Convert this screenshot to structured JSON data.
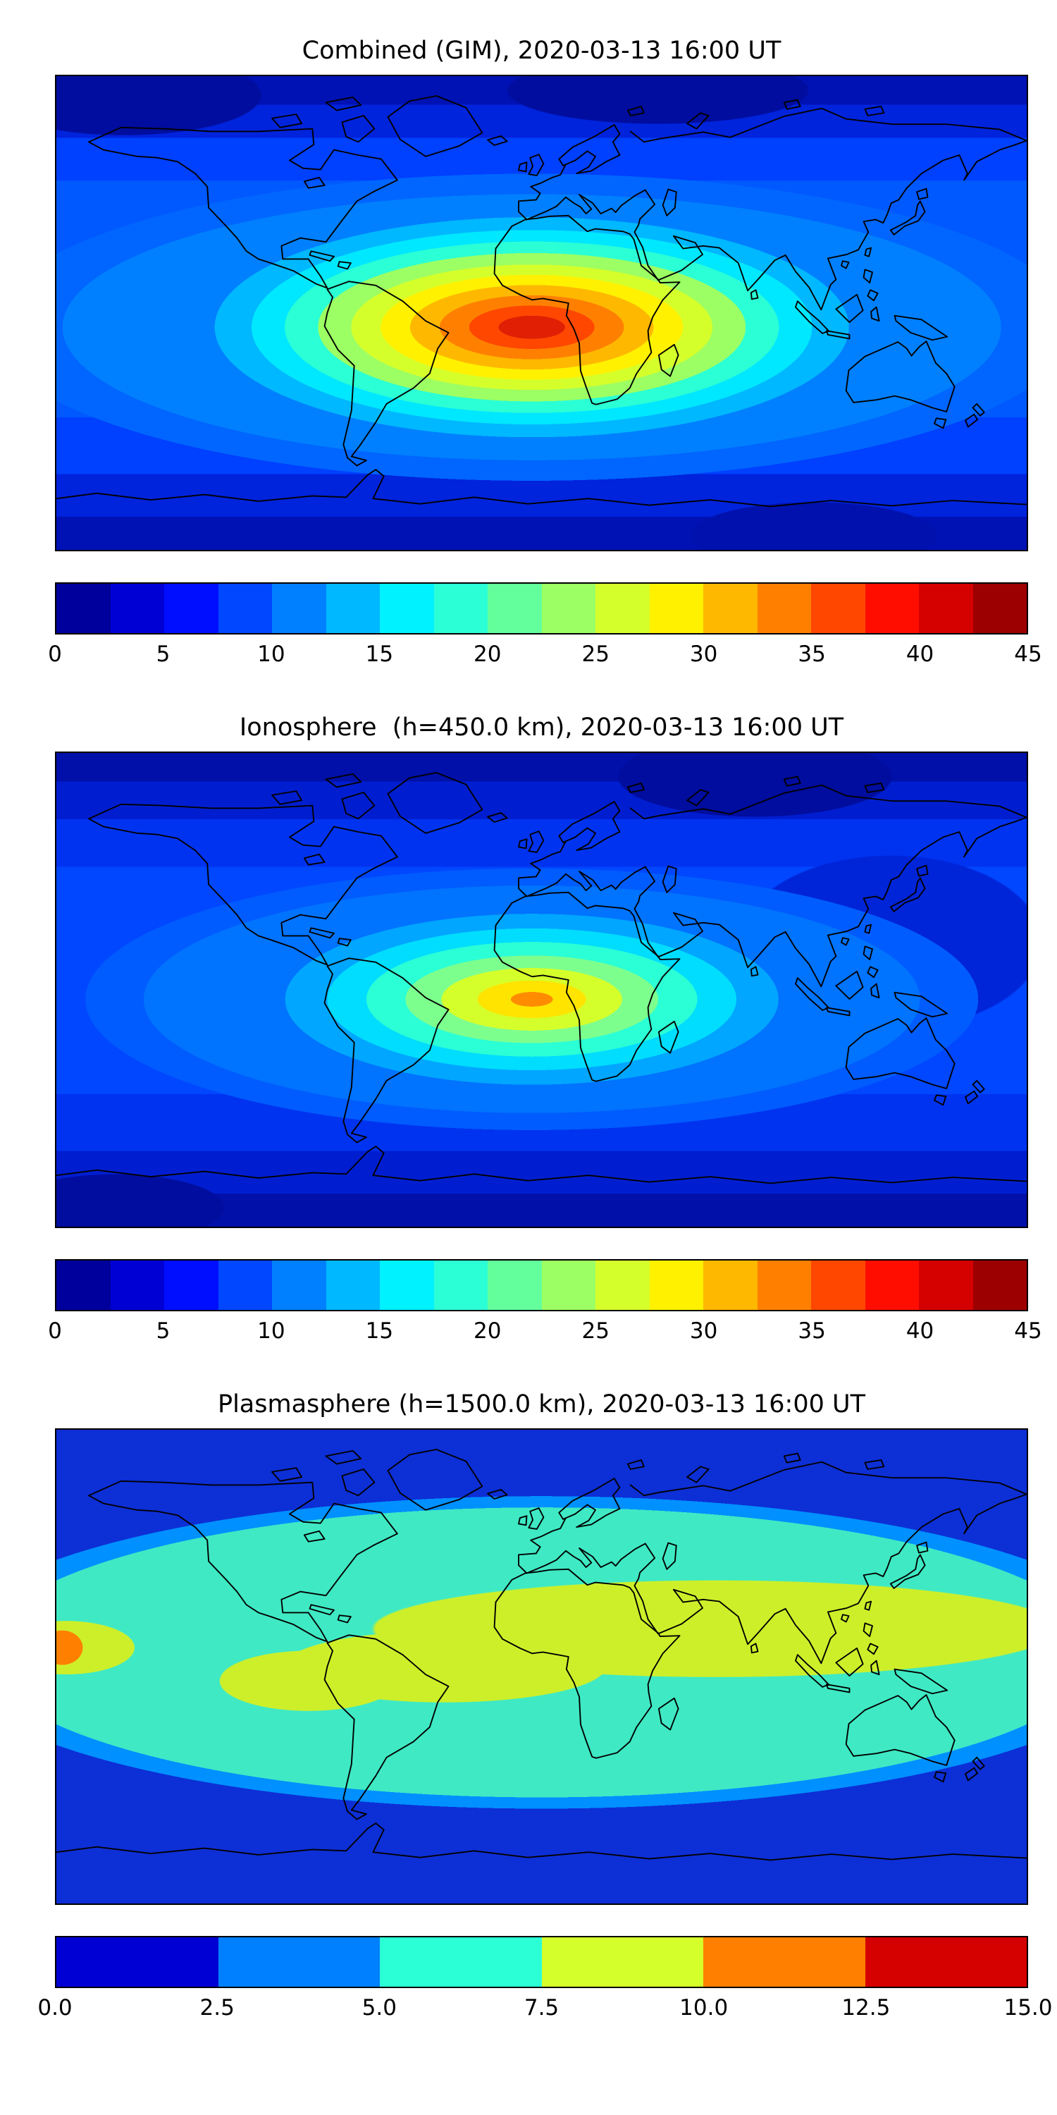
{
  "figure": {
    "timestamp_ut": "2020-03-13 16:00 UT",
    "panels": [
      {
        "title": "Combined (GIM), 2020-03-13 16:00 UT",
        "colorbar": {
          "min": 0,
          "max": 45,
          "ticks": [
            "0",
            "5",
            "10",
            "15",
            "20",
            "25",
            "30",
            "35",
            "40",
            "45"
          ],
          "segment_colors": [
            "#00009c",
            "#0000d5",
            "#000eff",
            "#0047ff",
            "#0080ff",
            "#00b8ff",
            "#00f1ff",
            "#2bffd5",
            "#63ff9c",
            "#9cff63",
            "#d5ff2b",
            "#fff100",
            "#ffb800",
            "#ff8000",
            "#ff4700",
            "#ff0e00",
            "#d50000",
            "#9c0000"
          ]
        }
      },
      {
        "title": "Ionosphere  (h=450.0 km), 2020-03-13 16:00 UT",
        "colorbar": {
          "min": 0,
          "max": 45,
          "ticks": [
            "0",
            "5",
            "10",
            "15",
            "20",
            "25",
            "30",
            "35",
            "40",
            "45"
          ],
          "segment_colors": [
            "#00009c",
            "#0000d5",
            "#000eff",
            "#0047ff",
            "#0080ff",
            "#00b8ff",
            "#00f1ff",
            "#2bffd5",
            "#63ff9c",
            "#9cff63",
            "#d5ff2b",
            "#fff100",
            "#ffb800",
            "#ff8000",
            "#ff4700",
            "#ff0e00",
            "#d50000",
            "#9c0000"
          ]
        }
      },
      {
        "title": "Plasmasphere (h=1500.0 km), 2020-03-13 16:00 UT",
        "colorbar": {
          "min": 0,
          "max": 15,
          "ticks": [
            "0.0",
            "2.5",
            "5.0",
            "7.5",
            "10.0",
            "12.5",
            "15.0"
          ],
          "segment_colors": [
            "#0000d5",
            "#0080ff",
            "#2bffd5",
            "#d5ff2b",
            "#ff8000",
            "#d50000"
          ]
        }
      }
    ]
  },
  "chart_data": [
    {
      "type": "heatmap",
      "subtype": "filled contour map, global equirectangular projection with coastlines",
      "title": "Combined (GIM), 2020-03-13 16:00 UT",
      "colormap": "jet",
      "value_range": [
        0,
        45
      ],
      "contour_step": 2.5,
      "colorbar_ticks": [
        0,
        5,
        10,
        15,
        20,
        25,
        30,
        35,
        40,
        45
      ],
      "legend_position": "horizontal colorbar below map",
      "peak": {
        "value_estimate": 42,
        "location": "equatorial region over the eastern Atlantic / western-central Africa (approx. 5-10S, 0-15E)"
      },
      "background_estimate": "5-12 over mid-latitude oceans, 0-5 near the poles and over northeast Asia",
      "pattern": "single broad dayside enhancement centered near the sub-solar point, concentric contour rings (red core, orange, yellow, green, cyan) decreasing toward the poles and the night side over the Pacific/east Asia"
    },
    {
      "type": "heatmap",
      "subtype": "filled contour map, global equirectangular projection with coastlines",
      "title": "Ionosphere  (h=450.0 km), 2020-03-13 16:00 UT",
      "colormap": "jet",
      "value_range": [
        0,
        45
      ],
      "contour_step": 2.5,
      "colorbar_ticks": [
        0,
        5,
        10,
        15,
        20,
        25,
        30,
        35,
        40,
        45
      ],
      "legend_position": "horizontal colorbar below map",
      "peak": {
        "value_estimate": 33,
        "location": "equatorial Atlantic near the West African coast (approx. 5S, 0E)"
      },
      "background_estimate": "2.5-10 over most of the globe, darkest (0-5) at high latitudes and over the eastern Pacific sector",
      "pattern": "same dayside enhancement as the combined map but weaker: small orange core inside yellow and green rings over the equatorial Atlantic/Africa"
    },
    {
      "type": "heatmap",
      "subtype": "filled contour map, global equirectangular projection with coastlines",
      "title": "Plasmasphere (h=1500.0 km), 2020-03-13 16:00 UT",
      "colormap": "jet",
      "value_range": [
        0,
        15
      ],
      "contour_step": 2.5,
      "colorbar_ticks": [
        0.0,
        2.5,
        5.0,
        7.5,
        10.0,
        12.5,
        15.0
      ],
      "legend_position": "horizontal colorbar below map",
      "latitude_bands": [
        {
          "band": "high latitudes poleward of roughly 45-50 degrees",
          "value": "0-2.5 (blue)"
        },
        {
          "band": "mid latitudes",
          "value": "5-7.5 (turquoise)"
        },
        {
          "band": "low-latitude equatorial belt, strongest over Africa-Asia sector and eastern South America",
          "value": "7.5-10 (yellow-green)"
        },
        {
          "band": "small spot at the far western equatorial edge of the map",
          "value": "10-12.5 (orange)"
        }
      ],
      "pattern": "zonally banded structure roughly symmetric about the equator; no sharp localized peak"
    }
  ]
}
